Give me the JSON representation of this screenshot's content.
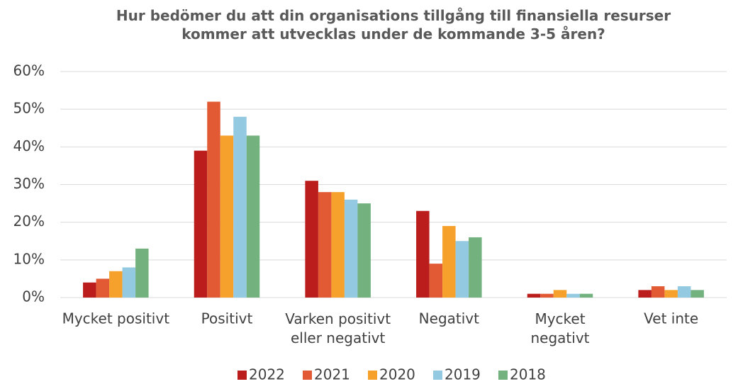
{
  "chart_data": {
    "type": "bar",
    "title": "Hur bedömer du att din organisations tillgång till finansiella resurser\nkommer att utvecklas under de kommande 3-5 åren?",
    "categories": [
      "Mycket positivt",
      "Positivt",
      "Varken positivt\neller negativt",
      "Negativt",
      "Mycket\nnegativt",
      "Vet inte"
    ],
    "series": [
      {
        "name": "2022",
        "color": "#bb1c1c",
        "values": [
          4,
          39,
          31,
          23,
          1,
          2
        ]
      },
      {
        "name": "2021",
        "color": "#e25a33",
        "values": [
          5,
          52,
          28,
          9,
          1,
          3
        ]
      },
      {
        "name": "2020",
        "color": "#f6a12b",
        "values": [
          7,
          43,
          28,
          19,
          2,
          2
        ]
      },
      {
        "name": "2019",
        "color": "#93c9e1",
        "values": [
          8,
          48,
          26,
          15,
          1,
          3
        ]
      },
      {
        "name": "2018",
        "color": "#73b17f",
        "values": [
          13,
          43,
          25,
          16,
          1,
          2
        ]
      }
    ],
    "ylim": [
      0,
      60
    ],
    "yticks": [
      {
        "value": 0,
        "label": "0%"
      },
      {
        "value": 10,
        "label": "10%"
      },
      {
        "value": 20,
        "label": "20%"
      },
      {
        "value": 30,
        "label": "30%"
      },
      {
        "value": 40,
        "label": "40%"
      },
      {
        "value": 50,
        "label": "50%"
      },
      {
        "value": 60,
        "label": "60%"
      }
    ],
    "grid": true,
    "legend": "bottom"
  }
}
